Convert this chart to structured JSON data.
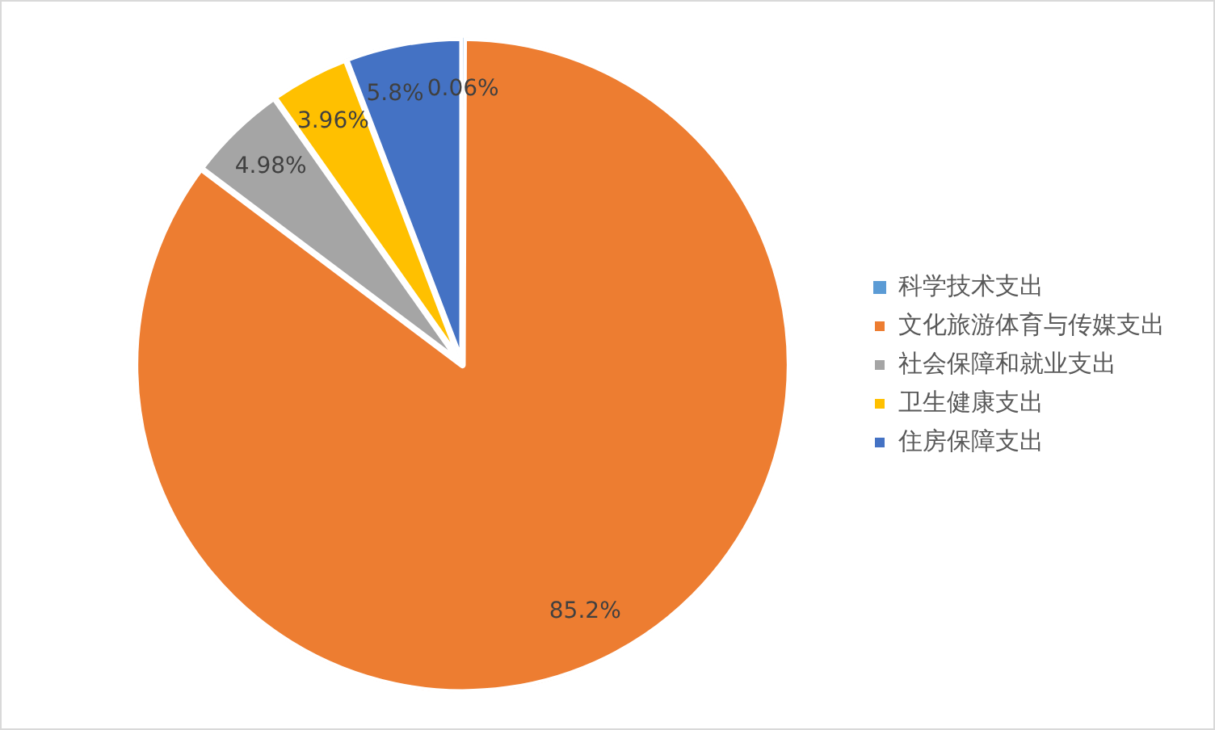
{
  "chart_data": {
    "type": "pie",
    "categories": [
      "科学技术支出",
      "文化旅游体育与传媒支出",
      "社会保障和就业支出",
      "卫生健康支出",
      "住房保障支出"
    ],
    "values": [
      0.06,
      85.2,
      4.98,
      3.96,
      5.8
    ],
    "colors": [
      "#5b9bd5",
      "#ed7d31",
      "#a5a5a5",
      "#ffc000",
      "#4472c4"
    ],
    "value_labels": [
      "0.06%",
      "85.2%",
      "4.98%",
      "3.96%",
      "5.8%"
    ],
    "legend": "right"
  }
}
